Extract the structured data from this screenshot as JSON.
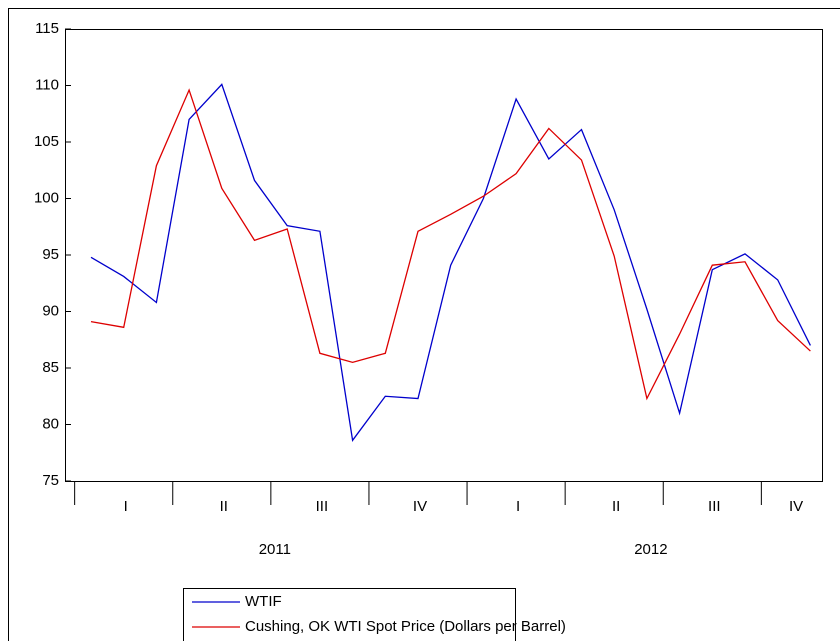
{
  "chart_data": {
    "type": "line",
    "series": [
      {
        "name": "WTIF",
        "color": "#0000cc",
        "values": [
          94.8,
          93.1,
          90.8,
          107.0,
          110.1,
          101.6,
          97.6,
          97.1,
          78.6,
          82.5,
          82.3,
          94.1,
          100.0,
          108.8,
          103.5,
          106.1,
          99.0,
          90.2,
          81.0,
          93.7,
          95.1,
          92.8,
          87.0
        ]
      },
      {
        "name": "Cushing, OK WTI Spot Price (Dollars per Barrel)",
        "color": "#dd0000",
        "values": [
          89.1,
          88.6,
          102.9,
          109.6,
          100.9,
          96.3,
          97.3,
          86.3,
          85.5,
          86.3,
          97.1,
          98.6,
          100.2,
          102.2,
          106.2,
          103.4,
          94.9,
          82.3,
          88.0,
          94.1,
          94.4,
          89.2,
          86.5
        ]
      }
    ],
    "quarters": [
      "I",
      "II",
      "III",
      "IV",
      "I",
      "II",
      "III",
      "IV"
    ],
    "years": [
      "2011",
      "2012"
    ],
    "ylim": [
      75,
      115
    ],
    "yticks": [
      75,
      80,
      85,
      90,
      95,
      100,
      105,
      110,
      115
    ]
  }
}
